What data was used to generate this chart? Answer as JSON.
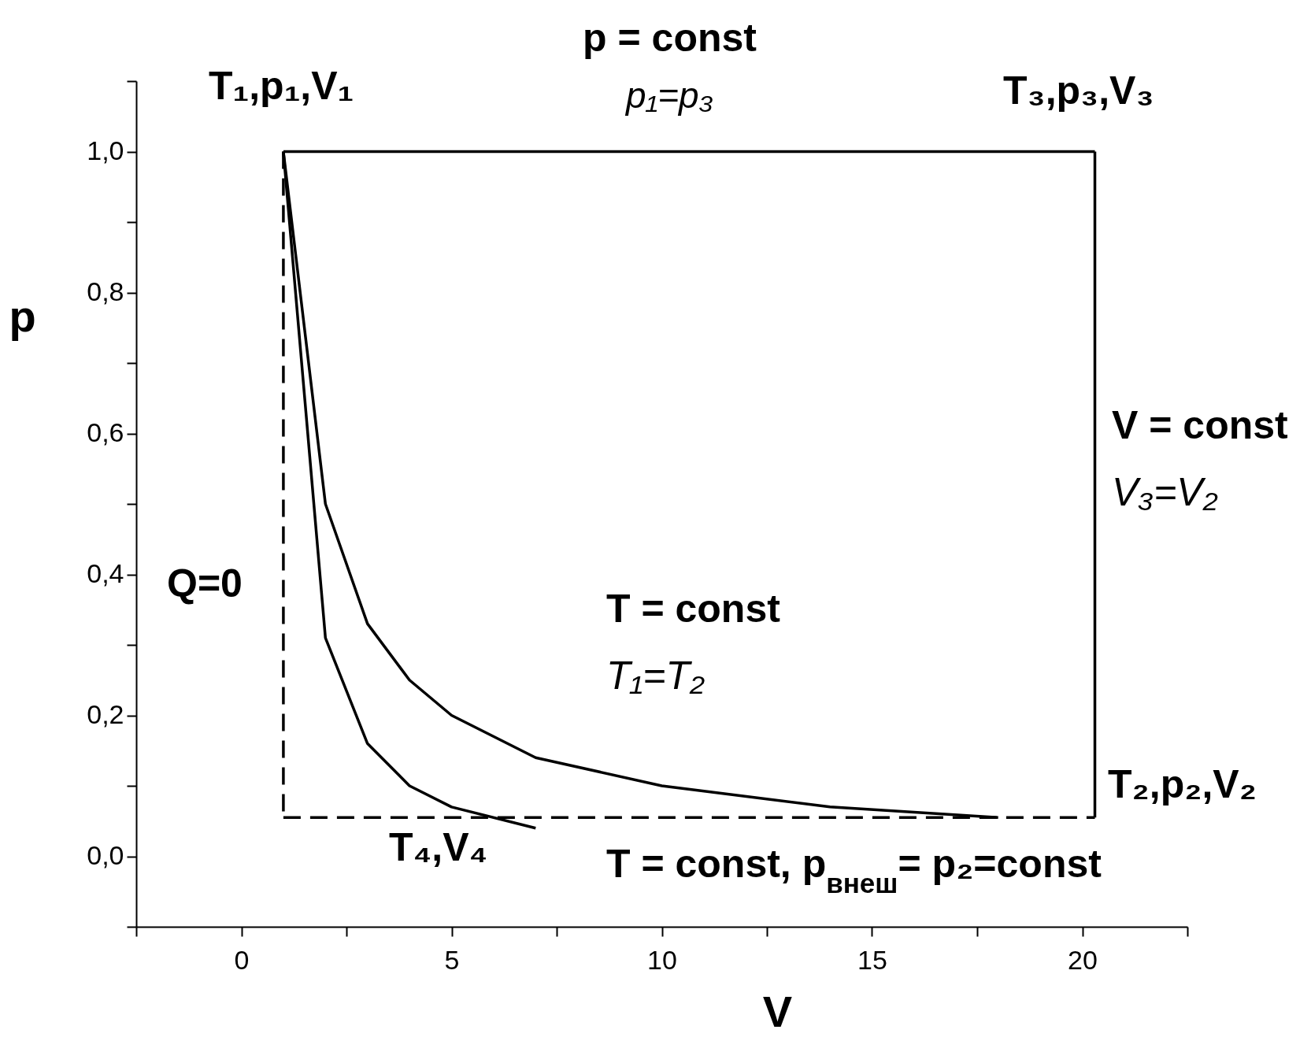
{
  "chart_data": {
    "type": "line",
    "title": "p = const",
    "subtitle": "p₁=p₃",
    "xlabel": "V",
    "ylabel": "p",
    "xlim": [
      -2.5,
      22.5
    ],
    "xticks": [
      {
        "value": -2.5,
        "label": null
      },
      0,
      {
        "value": 2.5,
        "label": null
      },
      5,
      {
        "value": 7.5,
        "label": null
      },
      10,
      {
        "value": 12.5,
        "label": null
      },
      15,
      {
        "value": 17.5,
        "label": null
      },
      20,
      {
        "value": 22.5,
        "label": null
      }
    ],
    "ylim": [
      -0.1,
      1.1
    ],
    "yticks": [
      {
        "value": -0.1,
        "label": null
      },
      {
        "value": 0,
        "label": "0,0"
      },
      {
        "value": 0.1,
        "label": null
      },
      {
        "value": 0.2,
        "label": "0,2"
      },
      {
        "value": 0.3,
        "label": null
      },
      {
        "value": 0.4,
        "label": "0,4"
      },
      {
        "value": 0.5,
        "label": null
      },
      {
        "value": 0.6,
        "label": "0,6"
      },
      {
        "value": 0.7,
        "label": null
      },
      {
        "value": 0.8,
        "label": "0,8"
      },
      {
        "value": 0.9,
        "label": null
      },
      {
        "value": 1,
        "label": "1,0"
      },
      {
        "value": 1.1,
        "label": null
      }
    ],
    "series": [
      {
        "color": "#000000",
        "line_style": "solid",
        "x": [
          1,
          20.3
        ],
        "values": [
          1,
          1
        ]
      },
      {
        "color": "#000000",
        "line_style": "solid",
        "x": [
          20.3,
          20.3
        ],
        "values": [
          1,
          0.055
        ]
      },
      {
        "color": "#000000",
        "line_style": "solid",
        "x": [
          1,
          2,
          3,
          4,
          5,
          7,
          10,
          14,
          18
        ],
        "values": [
          1,
          0.5,
          0.33,
          0.25,
          0.2,
          0.14,
          0.1,
          0.07,
          0.055
        ]
      },
      {
        "color": "#000000",
        "line_style": "solid",
        "x": [
          1,
          2,
          3,
          4,
          5,
          7
        ],
        "values": [
          1,
          0.31,
          0.16,
          0.1,
          0.07,
          0.04
        ]
      },
      {
        "color": "#000000",
        "line_style": "dashed",
        "x": [
          1,
          1
        ],
        "values": [
          1,
          0.055
        ]
      },
      {
        "color": "#000000",
        "line_style": "dashed",
        "x": [
          1,
          20.3
        ],
        "values": [
          0.055,
          0.055
        ]
      }
    ],
    "annotations": [
      "T₁,p₁,V₁",
      "T₃,p₃,V₃",
      "V = const\nV₃=V₂",
      "T = const\nT₁=T₂",
      "T₂,p₂,V₂",
      "T₄,V₄",
      "Q=0",
      "T = const, p$_{внеш}$= p₂=const"
    ],
    "grid": false
  }
}
